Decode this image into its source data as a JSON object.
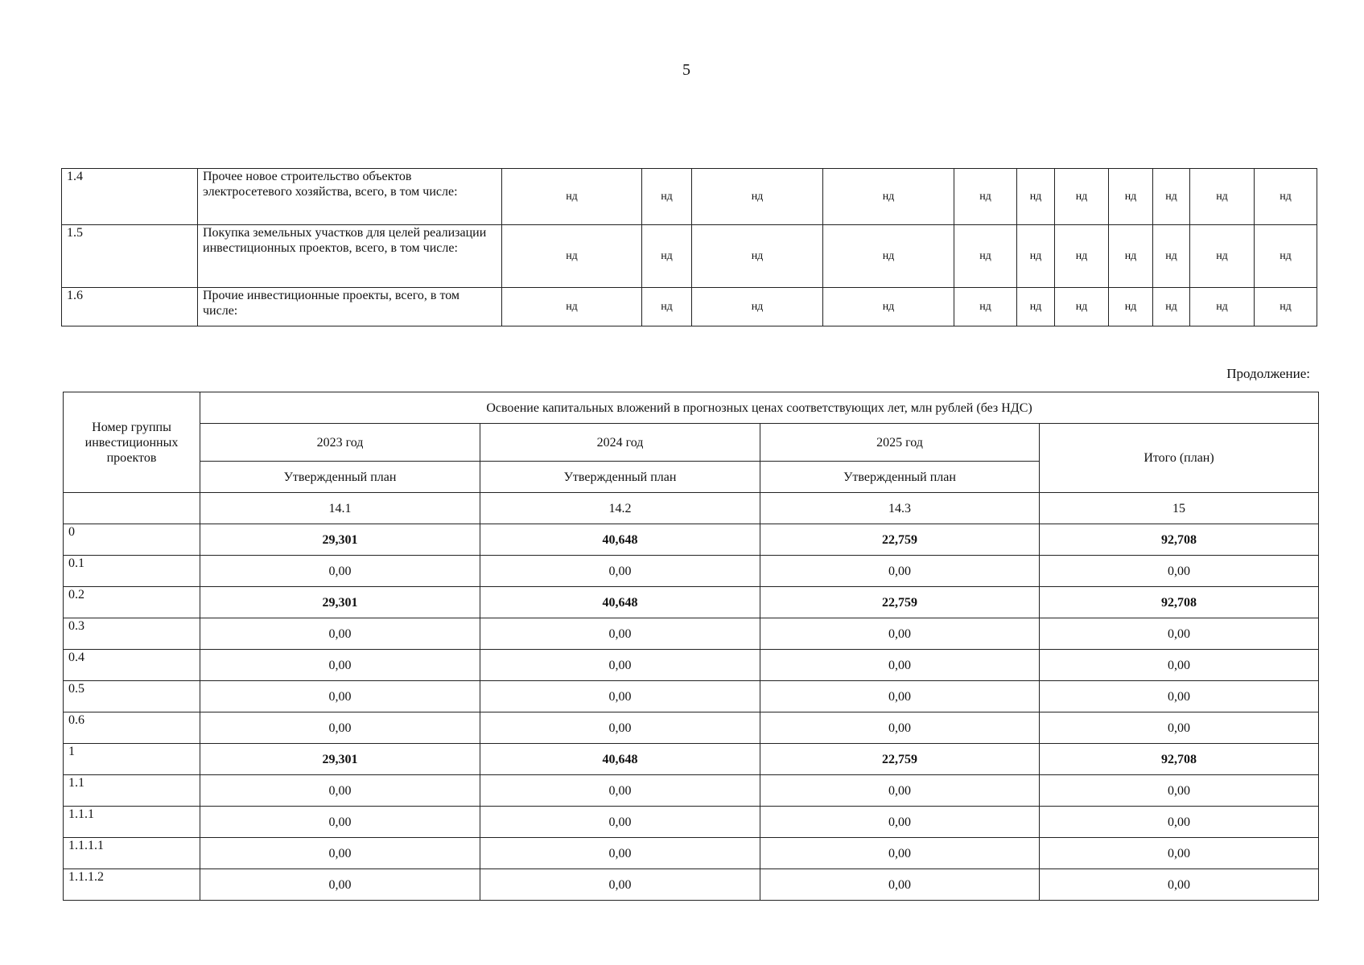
{
  "page_number": "5",
  "top_table": {
    "rows": [
      {
        "num": "1.4",
        "name": "Прочее новое строительство объектов электросетевого хозяйства, всего, в том числе:",
        "values": [
          "нд",
          "нд",
          "нд",
          "нд",
          "нд",
          "нд",
          "нд",
          "нд",
          "нд",
          "нд",
          "нд"
        ]
      },
      {
        "num": "1.5",
        "name": "Покупка земельных участков для целей реализации инвестиционных проектов, всего, в том числе:",
        "values": [
          "нд",
          "нд",
          "нд",
          "нд",
          "нд",
          "нд",
          "нд",
          "нд",
          "нд",
          "нд",
          "нд"
        ]
      },
      {
        "num": "1.6",
        "name": "Прочие инвестиционные проекты, всего, в том числе:",
        "values": [
          "нд",
          "нд",
          "нд",
          "нд",
          "нд",
          "нд",
          "нд",
          "нд",
          "нд",
          "нд",
          "нд"
        ]
      }
    ]
  },
  "continuation_label": "Продолжение:",
  "bottom_table": {
    "group_header": "Номер группы инвестиционных проектов",
    "main_header": "Освоение капитальных вложений в прогнозных ценах соответствующих лет, млн рублей (без НДС)",
    "years": [
      "2023 год",
      "2024 год",
      "2025 год"
    ],
    "plan_label": "Утвержденный план",
    "total_header": "Итого (план)",
    "col_numbers": [
      "14.1",
      "14.2",
      "14.3",
      "15"
    ],
    "rows": [
      {
        "num": "0",
        "values": [
          "29,301",
          "40,648",
          "22,759",
          "92,708"
        ],
        "bold": true
      },
      {
        "num": "0.1",
        "values": [
          "0,00",
          "0,00",
          "0,00",
          "0,00"
        ]
      },
      {
        "num": "0.2",
        "values": [
          "29,301",
          "40,648",
          "22,759",
          "92,708"
        ],
        "bold": true
      },
      {
        "num": "0.3",
        "values": [
          "0,00",
          "0,00",
          "0,00",
          "0,00"
        ]
      },
      {
        "num": "0.4",
        "values": [
          "0,00",
          "0,00",
          "0,00",
          "0,00"
        ]
      },
      {
        "num": "0.5",
        "values": [
          "0,00",
          "0,00",
          "0,00",
          "0,00"
        ]
      },
      {
        "num": "0.6",
        "values": [
          "0,00",
          "0,00",
          "0,00",
          "0,00"
        ]
      },
      {
        "num": "1",
        "values": [
          "29,301",
          "40,648",
          "22,759",
          "92,708"
        ],
        "bold": true
      },
      {
        "num": "1.1",
        "values": [
          "0,00",
          "0,00",
          "0,00",
          "0,00"
        ]
      },
      {
        "num": "1.1.1",
        "values": [
          "0,00",
          "0,00",
          "0,00",
          "0,00"
        ]
      },
      {
        "num": "1.1.1.1",
        "values": [
          "0,00",
          "0,00",
          "0,00",
          "0,00"
        ]
      },
      {
        "num": "1.1.1.2",
        "values": [
          "0,00",
          "0,00",
          "0,00",
          "0,00"
        ]
      }
    ]
  }
}
